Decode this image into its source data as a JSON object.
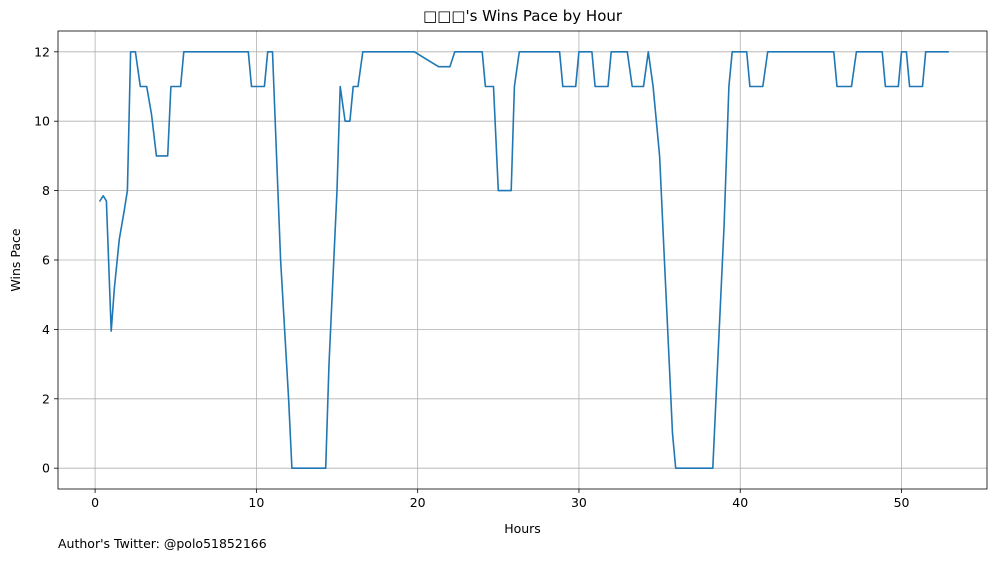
{
  "chart_data": {
    "type": "line",
    "title": "□□□'s Wins Pace by Hour",
    "xlabel": "Hours",
    "ylabel": "Wins Pace",
    "xlim": [
      -2.3,
      55.3
    ],
    "ylim": [
      -0.6,
      12.6
    ],
    "xticks": [
      0,
      10,
      20,
      30,
      40,
      50
    ],
    "yticks": [
      0,
      2,
      4,
      6,
      8,
      10,
      12
    ],
    "grid": true,
    "line_color": "#1f77b4",
    "series": [
      {
        "x": [
          0.3,
          0.5,
          0.7,
          1.0,
          1.2,
          1.5,
          1.8,
          2.0,
          2.2,
          2.5,
          2.8,
          3.0,
          3.2,
          3.5,
          3.8,
          4.0,
          4.3,
          4.5,
          4.7,
          5.0,
          5.3,
          5.5,
          6.0,
          7.0,
          8.0,
          9.0,
          9.5,
          9.7,
          10.0,
          10.5,
          10.7,
          11.0,
          11.5,
          12.0,
          12.2,
          12.5,
          13.0,
          13.5,
          14.0,
          14.3,
          14.5,
          14.8,
          15.0,
          15.2,
          15.5,
          15.8,
          16.0,
          16.3,
          16.6,
          17.0,
          18.0,
          19.0,
          19.8,
          20.5,
          21.3,
          21.8,
          22.0,
          22.3,
          22.5,
          23.0,
          23.5,
          24.0,
          24.2,
          24.5,
          24.7,
          25.0,
          25.3,
          25.6,
          25.8,
          26.0,
          26.3,
          26.5,
          27.0,
          28.0,
          28.8,
          29.0,
          29.3,
          29.6,
          29.8,
          30.0,
          30.5,
          30.8,
          31.0,
          31.3,
          31.5,
          31.8,
          32.0,
          32.3,
          33.0,
          33.3,
          33.5,
          34.0,
          34.3,
          34.6,
          35.0,
          35.3,
          35.6,
          35.8,
          36.0,
          37.0,
          38.0,
          38.3,
          38.5,
          39.0,
          39.3,
          39.5,
          40.0,
          40.4,
          40.6,
          41.0,
          41.4,
          41.7,
          42.0,
          43.0,
          44.0,
          45.0,
          45.8,
          46.0,
          46.5,
          46.9,
          47.2,
          48.0,
          48.8,
          49.0,
          49.3,
          49.8,
          50.0,
          50.3,
          50.5,
          51.0,
          51.3,
          51.5,
          52.0,
          52.9
        ],
        "y": [
          7.7,
          7.85,
          7.7,
          3.95,
          5.2,
          6.6,
          7.4,
          8.0,
          12.0,
          12.0,
          11.0,
          11.0,
          11.0,
          10.2,
          9.0,
          9.0,
          9.0,
          9.0,
          11.0,
          11.0,
          11.0,
          12.0,
          12.0,
          12.0,
          12.0,
          12.0,
          12.0,
          11.0,
          11.0,
          11.0,
          12.0,
          12.0,
          6.0,
          2.0,
          0.0,
          0.0,
          0.0,
          0.0,
          0.0,
          0.0,
          3.0,
          6.0,
          8.0,
          11.0,
          10.0,
          10.0,
          11.0,
          11.0,
          12.0,
          12.0,
          12.0,
          12.0,
          12.0,
          11.8,
          11.57,
          11.57,
          11.57,
          12.0,
          12.0,
          12.0,
          12.0,
          12.0,
          11.0,
          11.0,
          11.0,
          8.0,
          8.0,
          8.0,
          8.0,
          11.0,
          12.0,
          12.0,
          12.0,
          12.0,
          12.0,
          11.0,
          11.0,
          11.0,
          11.0,
          12.0,
          12.0,
          12.0,
          11.0,
          11.0,
          11.0,
          11.0,
          12.0,
          12.0,
          12.0,
          11.0,
          11.0,
          11.0,
          12.0,
          11.0,
          9.0,
          6.0,
          3.0,
          1.0,
          0.0,
          0.0,
          0.0,
          0.0,
          2.0,
          7.0,
          11.0,
          12.0,
          12.0,
          12.0,
          11.0,
          11.0,
          11.0,
          12.0,
          12.0,
          12.0,
          12.0,
          12.0,
          12.0,
          11.0,
          11.0,
          11.0,
          12.0,
          12.0,
          12.0,
          11.0,
          11.0,
          11.0,
          12.0,
          12.0,
          11.0,
          11.0,
          11.0,
          12.0,
          12.0,
          12.0
        ]
      }
    ]
  },
  "footer": "Author's Twitter: @polo51852166"
}
